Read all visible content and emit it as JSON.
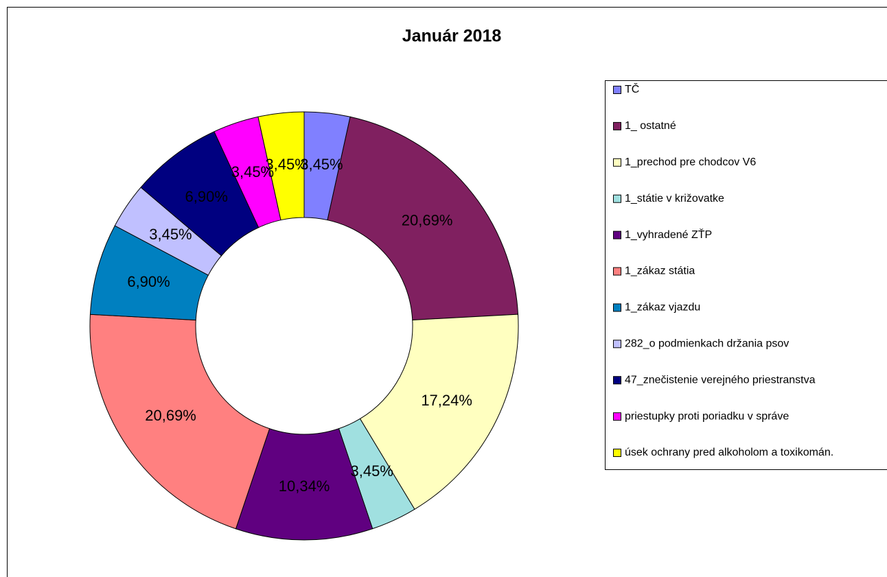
{
  "chart_data": {
    "type": "donut",
    "title": "Január 2018",
    "categories": [
      "TČ",
      "1_ ostatné",
      "1_prechod pre chodcov V6",
      "1_státie v križovatke",
      "1_vyhradené ZŤP",
      "1_zákaz státia",
      "1_zákaz vjazdu",
      "282_o podmienkach držania psov",
      "47_znečistenie verejného priestranstva",
      "priestupky proti poriadku v správe",
      "úsek ochrany pred alkoholom a toxikomán."
    ],
    "values": [
      3.45,
      20.69,
      17.24,
      3.45,
      10.34,
      20.69,
      6.9,
      3.45,
      6.9,
      3.45,
      3.45
    ],
    "value_labels": [
      "3,45%",
      "20,69%",
      "17,24%",
      "3,45%",
      "10,34%",
      "20,69%",
      "6,90%",
      "3,45%",
      "6,90%",
      "3,45%",
      "3,45%"
    ],
    "colors": [
      "#8080ff",
      "#802060",
      "#ffffc0",
      "#a0e0e0",
      "#600080",
      "#ff8080",
      "#0080c0",
      "#c0c0ff",
      "#000080",
      "#ff00ff",
      "#ffff00"
    ],
    "legend": "right"
  }
}
